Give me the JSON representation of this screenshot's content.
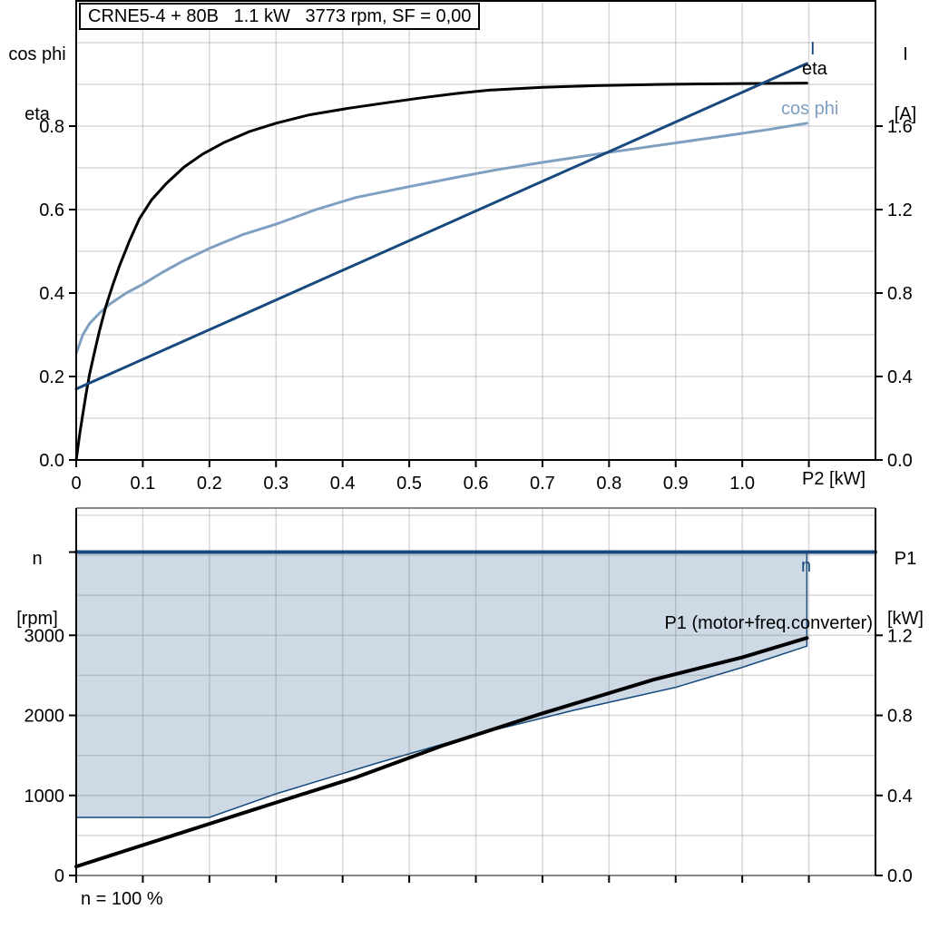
{
  "title_box": {
    "text": "CRNE5-4 + 80B   1.1 kW   3773 rpm, SF = 0,00"
  },
  "footnote": "n = 100 %",
  "colors": {
    "dark_blue": "#17497E",
    "light_blue": "#7FA0C1",
    "area_fill": "#CDD9E5",
    "grid": "rgba(110,110,110,0.27)",
    "frame_gray": "#888888",
    "black": "#000000"
  },
  "chart_data": [
    {
      "id": "upper",
      "type": "line",
      "title": "CRNE5-4 + 80B   1.1 kW   3773 rpm, SF = 0,00",
      "xlabel": "P2 [kW]",
      "axis_titles": {
        "left": [
          "cos phi",
          "eta"
        ],
        "right": [
          "I",
          "[A]"
        ]
      },
      "x_range": [
        0,
        1.2
      ],
      "y_left_range": [
        0,
        1.1
      ],
      "y_right_range": [
        0,
        2.2
      ],
      "x_grid": [
        0.1,
        0.2,
        0.3,
        0.4,
        0.5,
        0.6,
        0.7,
        0.8,
        0.9,
        1.0,
        1.1
      ],
      "y_grid_axis": "left",
      "y_grid": [
        0.1,
        0.2,
        0.3,
        0.4,
        0.5,
        0.6,
        0.7,
        0.8,
        0.9,
        1.0
      ],
      "x_ticks": {
        "values": [
          0,
          0.1,
          0.2,
          0.3,
          0.4,
          0.5,
          0.6,
          0.7,
          0.8,
          0.9,
          1.0,
          1.1
        ],
        "labels": [
          "0",
          "0.1",
          "0.2",
          "0.3",
          "0.4",
          "0.5",
          "0.6",
          "0.7",
          "0.8",
          "0.9",
          "1.0",
          ""
        ]
      },
      "left_ticks": {
        "values": [
          0,
          0.2,
          0.4,
          0.6,
          0.8
        ],
        "labels": [
          "0.0",
          "0.2",
          "0.4",
          "0.6",
          "0.8"
        ]
      },
      "right_ticks": {
        "values": [
          0,
          0.4,
          0.8,
          1.2,
          1.6
        ],
        "labels": [
          "0.0",
          "0.4",
          "0.8",
          "1.2",
          "1.6"
        ]
      },
      "series": [
        {
          "name": "cos phi",
          "axis": "left",
          "color": "#7FA0C1",
          "width": 3,
          "points": [
            [
              0,
              0.255
            ],
            [
              0.01,
              0.3
            ],
            [
              0.02,
              0.327
            ],
            [
              0.035,
              0.352
            ],
            [
              0.05,
              0.373
            ],
            [
              0.075,
              0.4
            ],
            [
              0.1,
              0.421
            ],
            [
              0.13,
              0.45
            ],
            [
              0.162,
              0.478
            ],
            [
              0.2,
              0.507
            ],
            [
              0.25,
              0.54
            ],
            [
              0.3,
              0.565
            ],
            [
              0.36,
              0.6
            ],
            [
              0.42,
              0.629
            ],
            [
              0.5,
              0.655
            ],
            [
              0.57,
              0.677
            ],
            [
              0.63,
              0.695
            ],
            [
              0.7,
              0.713
            ],
            [
              0.77,
              0.73
            ],
            [
              0.84,
              0.746
            ],
            [
              0.91,
              0.762
            ],
            [
              0.98,
              0.778
            ],
            [
              1.04,
              0.792
            ],
            [
              1.097,
              0.807
            ]
          ]
        },
        {
          "name": "eta",
          "axis": "left",
          "color": "#000000",
          "width": 3,
          "points": [
            [
              0,
              0
            ],
            [
              0.005,
              0.06
            ],
            [
              0.01,
              0.11
            ],
            [
              0.015,
              0.16
            ],
            [
              0.02,
              0.205
            ],
            [
              0.027,
              0.255
            ],
            [
              0.035,
              0.31
            ],
            [
              0.045,
              0.37
            ],
            [
              0.055,
              0.42
            ],
            [
              0.065,
              0.465
            ],
            [
              0.08,
              0.525
            ],
            [
              0.095,
              0.578
            ],
            [
              0.113,
              0.623
            ],
            [
              0.135,
              0.662
            ],
            [
              0.162,
              0.702
            ],
            [
              0.19,
              0.733
            ],
            [
              0.221,
              0.76
            ],
            [
              0.26,
              0.787
            ],
            [
              0.3,
              0.807
            ],
            [
              0.35,
              0.827
            ],
            [
              0.41,
              0.843
            ],
            [
              0.47,
              0.857
            ],
            [
              0.52,
              0.868
            ],
            [
              0.57,
              0.878
            ],
            [
              0.62,
              0.886
            ],
            [
              0.7,
              0.893
            ],
            [
              0.78,
              0.897
            ],
            [
              0.88,
              0.9
            ],
            [
              1.0,
              0.902
            ],
            [
              1.097,
              0.903
            ]
          ]
        },
        {
          "name": "I",
          "axis": "right",
          "color": "#17497E",
          "width": 3,
          "points": [
            [
              0,
              0.34
            ],
            [
              1.097,
              1.9
            ]
          ]
        }
      ]
    },
    {
      "id": "lower",
      "type": "line",
      "xlabel": "",
      "axis_titles": {
        "left": [
          "n",
          "[rpm]"
        ],
        "right": [
          "P1",
          "[kW]"
        ]
      },
      "footnote": "n = 100 %",
      "x_range": [
        0,
        1.2
      ],
      "y_left_range": [
        0,
        4590
      ],
      "y_right_range": [
        0,
        1.836
      ],
      "x_grid": [
        0.1,
        0.2,
        0.3,
        0.4,
        0.5,
        0.6,
        0.7,
        0.8,
        0.9,
        1.0,
        1.1
      ],
      "y_grid_axis": "right",
      "y_grid": [
        0.2,
        0.4,
        0.6,
        0.8,
        1.0,
        1.2,
        1.4,
        1.6,
        1.8
      ],
      "x_ticks": {
        "values": [
          0,
          0.1,
          0.2,
          0.3,
          0.4,
          0.5,
          0.6,
          0.7,
          0.8,
          0.9,
          1.0,
          1.1
        ],
        "labels": [
          "",
          "",
          "",
          "",
          "",
          "",
          "",
          "",
          "",
          "",
          "",
          ""
        ]
      },
      "left_ticks": {
        "values": [
          0,
          1000,
          2000,
          3000
        ],
        "labels": [
          "0",
          "1000",
          "2000",
          "3000"
        ]
      },
      "left_minor_ticks": [
        4040
      ],
      "right_ticks": {
        "values": [
          0,
          0.4,
          0.8,
          1.2
        ],
        "labels": [
          "0.0",
          "0.4",
          "0.8",
          "1.2"
        ]
      },
      "area": {
        "name": "speed-range",
        "color": "#CDD9E5",
        "stroke": "#17497E",
        "points": [
          [
            0,
            4040
          ],
          [
            1.097,
            4040
          ],
          [
            1.097,
            2865
          ],
          [
            1.0,
            2600
          ],
          [
            0.9,
            2350
          ],
          [
            0.75,
            2070
          ],
          [
            0.6,
            1760
          ],
          [
            0.45,
            1400
          ],
          [
            0.3,
            1020
          ],
          [
            0.2,
            725
          ],
          [
            0,
            725
          ]
        ]
      },
      "series": [
        {
          "name": "P1 (motor+freq.converter)",
          "axis": "right",
          "color": "#000000",
          "width": 4,
          "points": [
            [
              0,
              0.045
            ],
            [
              0.15,
              0.205
            ],
            [
              0.294,
              0.358
            ],
            [
              0.42,
              0.49
            ],
            [
              0.549,
              0.648
            ],
            [
              0.7,
              0.81
            ],
            [
              0.866,
              0.978
            ],
            [
              1.0,
              1.09
            ],
            [
              1.097,
              1.187
            ]
          ]
        },
        {
          "name": "n",
          "axis": "left",
          "color": "#17497E",
          "width": 4,
          "points": [
            [
              0,
              4040
            ],
            [
              1.2,
              4040
            ]
          ]
        }
      ]
    }
  ]
}
